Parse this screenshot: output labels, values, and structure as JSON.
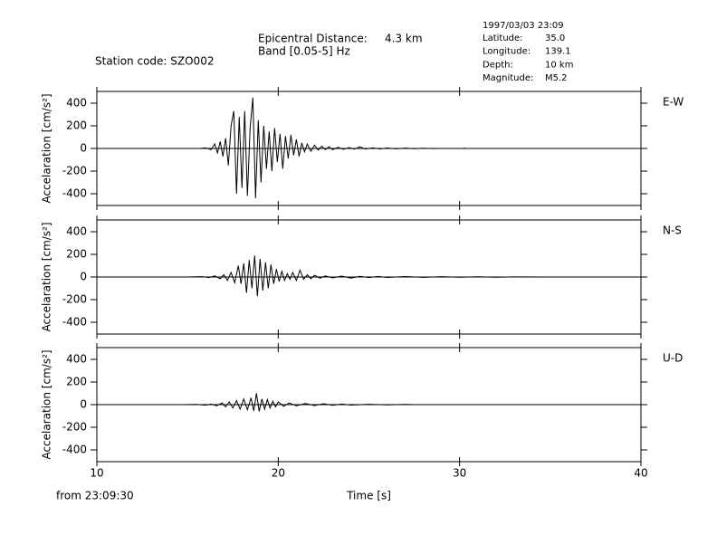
{
  "header": {
    "station": "Station code: SZO002",
    "distance_label": "Epicentral Distance:",
    "distance_value": "4.3 km",
    "band": "Band [0.05-5] Hz",
    "datetime": "1997/03/03 23:09",
    "info": [
      [
        "Latitude:",
        "35.0"
      ],
      [
        "Longitude:",
        "139.1"
      ],
      [
        "Depth:",
        "10 km"
      ],
      [
        "Magnitude:",
        "M5.2"
      ]
    ]
  },
  "footer": "from 23:09:30",
  "chart_data": [
    {
      "type": "line",
      "channel": "E-W",
      "ylabel": "Accelaration [cm/s²]",
      "color": "#000000",
      "xlim": [
        10,
        40
      ],
      "xticks": [
        10,
        20,
        30,
        40
      ],
      "ylim": [
        -504,
        504
      ],
      "yticks": [
        -400,
        -200,
        0,
        200,
        400
      ],
      "x": [
        15.7,
        16.0,
        16.3,
        16.5,
        16.65,
        16.8,
        16.95,
        17.1,
        17.25,
        17.4,
        17.55,
        17.7,
        17.85,
        18.0,
        18.15,
        18.3,
        18.45,
        18.6,
        18.75,
        18.9,
        19.05,
        19.2,
        19.35,
        19.5,
        19.65,
        19.8,
        19.95,
        20.1,
        20.25,
        20.4,
        20.55,
        20.7,
        20.85,
        21.0,
        21.15,
        21.3,
        21.45,
        21.6,
        21.8,
        22.0,
        22.2,
        22.4,
        22.6,
        22.8,
        23.0,
        23.3,
        23.6,
        23.9,
        24.2,
        24.5,
        24.8,
        25.2,
        25.6,
        26.0,
        26.5,
        27.0,
        27.5,
        28.0,
        28.5,
        29.0,
        30.2,
        30.25,
        30.3,
        33.0
      ],
      "values": [
        0,
        5,
        -10,
        40,
        -40,
        60,
        -70,
        90,
        -150,
        200,
        330,
        -400,
        280,
        -350,
        330,
        -420,
        180,
        450,
        -440,
        250,
        -300,
        200,
        -180,
        150,
        -200,
        180,
        -120,
        130,
        -180,
        110,
        -90,
        120,
        -60,
        80,
        -70,
        50,
        -30,
        40,
        -25,
        30,
        -15,
        20,
        -10,
        15,
        -10,
        10,
        -8,
        8,
        -6,
        15,
        -5,
        5,
        -4,
        4,
        -3,
        3,
        -2,
        2,
        -1,
        0,
        0,
        3,
        0,
        0
      ]
    },
    {
      "type": "line",
      "channel": "N-S",
      "ylabel": "Accelaration [cm/s²]",
      "color": "#000000",
      "xlim": [
        10,
        40
      ],
      "xticks": [
        10,
        20,
        30,
        40
      ],
      "ylim": [
        -504,
        504
      ],
      "yticks": [
        -400,
        -200,
        0,
        200,
        400
      ],
      "x": [
        15.0,
        15.8,
        16.2,
        16.5,
        16.8,
        17.0,
        17.2,
        17.4,
        17.6,
        17.8,
        17.95,
        18.1,
        18.25,
        18.4,
        18.55,
        18.7,
        18.85,
        19.0,
        19.15,
        19.3,
        19.45,
        19.6,
        19.75,
        19.9,
        20.05,
        20.2,
        20.35,
        20.5,
        20.65,
        20.8,
        21.0,
        21.2,
        21.4,
        21.6,
        21.8,
        22.0,
        22.3,
        22.6,
        23.0,
        23.5,
        24.0,
        24.5,
        25.0,
        25.5,
        26.0,
        27.0,
        28.0,
        29.0,
        30.0,
        31.0,
        32.0,
        33.0,
        35.0,
        38.0
      ],
      "values": [
        0,
        3,
        -5,
        10,
        -15,
        20,
        -30,
        40,
        -50,
        100,
        -60,
        120,
        -140,
        150,
        -100,
        190,
        -170,
        160,
        -120,
        130,
        -100,
        110,
        -60,
        70,
        -40,
        50,
        -30,
        30,
        -20,
        40,
        -30,
        60,
        -20,
        20,
        -15,
        15,
        -10,
        10,
        -8,
        8,
        -10,
        6,
        -5,
        5,
        -4,
        4,
        -3,
        3,
        -2,
        2,
        -2,
        1,
        0,
        0
      ]
    },
    {
      "type": "line",
      "channel": "U-D",
      "ylabel": "Accelaration [cm/s²]",
      "color": "#000000",
      "xlabel": "Time [s]",
      "xlim": [
        10,
        40
      ],
      "xticks": [
        10,
        20,
        30,
        40
      ],
      "ylim": [
        -504,
        504
      ],
      "yticks": [
        -400,
        -200,
        0,
        200,
        400
      ],
      "x": [
        14.7,
        15.5,
        16.0,
        16.3,
        16.6,
        16.9,
        17.1,
        17.3,
        17.5,
        17.7,
        17.9,
        18.1,
        18.3,
        18.5,
        18.65,
        18.8,
        18.95,
        19.1,
        19.25,
        19.4,
        19.55,
        19.7,
        19.85,
        20.0,
        20.3,
        20.6,
        21.0,
        21.5,
        22.0,
        22.5,
        23.0,
        23.5,
        24.0,
        25.0,
        26.0,
        27.0,
        27.5
      ],
      "values": [
        0,
        2,
        -5,
        5,
        -10,
        15,
        -20,
        25,
        -30,
        35,
        -40,
        50,
        -45,
        60,
        -55,
        100,
        -60,
        50,
        -40,
        45,
        -30,
        30,
        -20,
        25,
        -15,
        15,
        -10,
        10,
        -8,
        8,
        -6,
        5,
        -4,
        3,
        -2,
        2,
        0
      ]
    }
  ]
}
